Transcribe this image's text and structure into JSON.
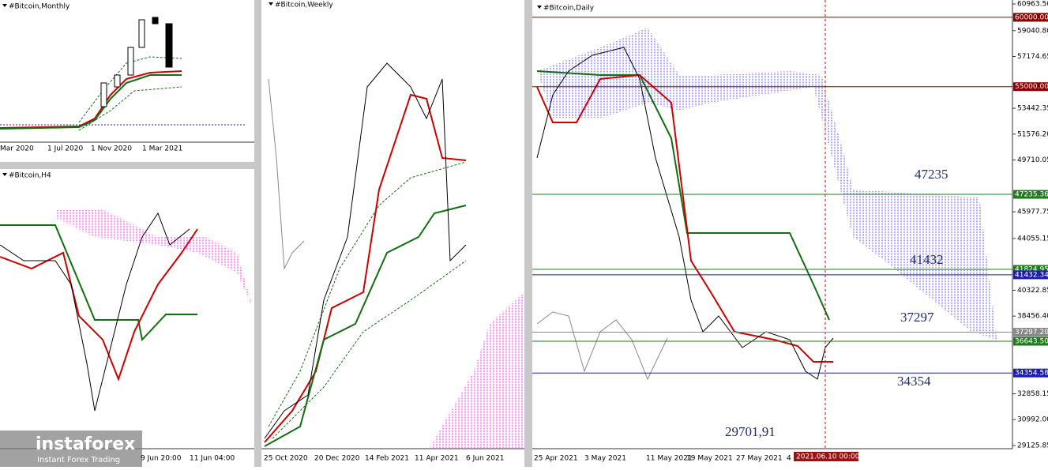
{
  "panels": [
    {
      "title": "#Bitcoin,Monthly",
      "x_labels": [
        "Mar 2020",
        "1 Jul 2020",
        "1 Nov 2020",
        "1 Mar 2021"
      ]
    },
    {
      "title": "#Bitcoin,H4",
      "x_labels": [
        "9 Jun 20:00",
        "11 Jun 04:00"
      ]
    },
    {
      "title": "#Bitcoin,Weekly",
      "x_labels": [
        "25 Oct 2020",
        "20 Dec 2020",
        "14 Feb 2021",
        "11 Apr 2021",
        "6 Jun 2021"
      ]
    },
    {
      "title": "#Bitcoin,Daily",
      "x_labels": [
        "25 Apr 2021",
        "3 May 2021",
        "11 May 2021",
        "19 May 2021",
        "27 May 2021",
        "4"
      ],
      "cursor_label": "2021.06.10 00:00",
      "ylim": [
        29125.85,
        60963.5
      ],
      "yticks": [
        {
          "value": 60963.5,
          "label": "60963.50"
        },
        {
          "value": 59040.8,
          "label": "59040.80"
        },
        {
          "value": 57174.65,
          "label": "57174.65"
        },
        {
          "value": 53442.35,
          "label": "53442.35"
        },
        {
          "value": 51576.2,
          "label": "51576.20"
        },
        {
          "value": 49710.05,
          "label": "49710.05"
        },
        {
          "value": 45977.75,
          "label": "45977.75"
        },
        {
          "value": 44055.15,
          "label": "44055.15"
        },
        {
          "value": 40322.85,
          "label": "40322.85"
        },
        {
          "value": 38456.4,
          "label": "38456.40"
        },
        {
          "value": 32858.15,
          "label": "32858.15"
        },
        {
          "value": 30992,
          "label": "30992.00"
        },
        {
          "value": 29125.85,
          "label": "29125.85"
        }
      ],
      "levels": [
        {
          "value": 60000,
          "label": "60000.00",
          "color": "#8b0000"
        },
        {
          "value": 55000,
          "label": "55000.00",
          "color": "#8b0000"
        },
        {
          "value": 47235.36,
          "label": "47235.36",
          "color": "#1e7b1e"
        },
        {
          "value": 41824.95,
          "label": "41824.95",
          "color": "#1e7b1e"
        },
        {
          "value": 41432.34,
          "label": "41432.34",
          "color": "#1c1cb0"
        },
        {
          "value": 37297.2,
          "label": "37297.20",
          "color": "#888888"
        },
        {
          "value": 36643.5,
          "label": "36643.50",
          "color": "#1e7b1e"
        },
        {
          "value": 34354.58,
          "label": "34354.58",
          "color": "#1c1cb0"
        }
      ],
      "annotations": [
        "47235",
        "41432",
        "37297",
        "34354",
        "29701,91"
      ]
    }
  ],
  "logo": {
    "brand": "instaforex",
    "tagline": "Instant Forex Trading"
  }
}
